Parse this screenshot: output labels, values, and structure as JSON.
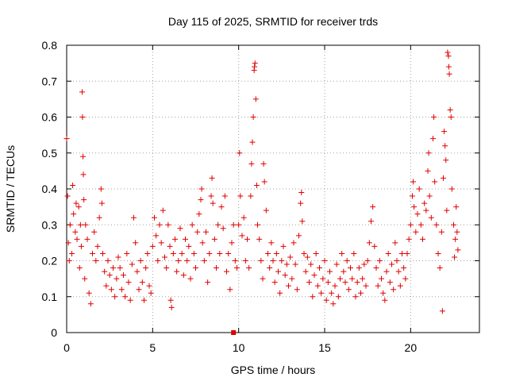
{
  "chart_data": {
    "type": "scatter",
    "title": "Day 115 of 2025, SRMTID for receiver trds",
    "xlabel": "GPS time / hours",
    "ylabel": "SRMTID / TECUs",
    "xlim": [
      0,
      24
    ],
    "ylim": [
      0,
      0.8
    ],
    "xticks": [
      0,
      5,
      10,
      15,
      20
    ],
    "yticks": [
      0,
      0.1,
      0.2,
      0.3,
      0.4,
      0.5,
      0.6,
      0.7,
      0.8
    ],
    "xtick_labels": [
      "0",
      "5",
      "10",
      "15",
      "20"
    ],
    "ytick_labels": [
      "0",
      "0.1",
      "0.2",
      "0.3",
      "0.4",
      "0.5",
      "0.6",
      "0.7",
      "0.8"
    ],
    "grid": true,
    "marker": "+",
    "color": "#e00000",
    "series": [
      {
        "name": "SRMTID",
        "points": [
          [
            0.0,
            0.54
          ],
          [
            0.05,
            0.38
          ],
          [
            0.1,
            0.25
          ],
          [
            0.15,
            0.2
          ],
          [
            0.2,
            0.3
          ],
          [
            0.3,
            0.22
          ],
          [
            0.35,
            0.41
          ],
          [
            0.4,
            0.33
          ],
          [
            0.5,
            0.28
          ],
          [
            0.55,
            0.36
          ],
          [
            0.6,
            0.26
          ],
          [
            0.7,
            0.35
          ],
          [
            0.75,
            0.18
          ],
          [
            0.8,
            0.3
          ],
          [
            0.85,
            0.24
          ],
          [
            0.9,
            0.67
          ],
          [
            0.92,
            0.6
          ],
          [
            0.95,
            0.49
          ],
          [
            0.97,
            0.44
          ],
          [
            1.0,
            0.37
          ],
          [
            1.05,
            0.15
          ],
          [
            1.1,
            0.3
          ],
          [
            1.2,
            0.26
          ],
          [
            1.3,
            0.11
          ],
          [
            1.4,
            0.08
          ],
          [
            1.5,
            0.22
          ],
          [
            1.6,
            0.28
          ],
          [
            1.7,
            0.2
          ],
          [
            1.8,
            0.24
          ],
          [
            1.9,
            0.32
          ],
          [
            2.0,
            0.4
          ],
          [
            2.05,
            0.36
          ],
          [
            2.1,
            0.22
          ],
          [
            2.2,
            0.17
          ],
          [
            2.3,
            0.13
          ],
          [
            2.4,
            0.2
          ],
          [
            2.5,
            0.16
          ],
          [
            2.6,
            0.12
          ],
          [
            2.7,
            0.18
          ],
          [
            2.8,
            0.1
          ],
          [
            2.9,
            0.15
          ],
          [
            3.0,
            0.21
          ],
          [
            3.1,
            0.18
          ],
          [
            3.2,
            0.12
          ],
          [
            3.3,
            0.16
          ],
          [
            3.4,
            0.1
          ],
          [
            3.5,
            0.22
          ],
          [
            3.6,
            0.14
          ],
          [
            3.7,
            0.09
          ],
          [
            3.8,
            0.19
          ],
          [
            3.9,
            0.32
          ],
          [
            4.0,
            0.25
          ],
          [
            4.1,
            0.17
          ],
          [
            4.2,
            0.12
          ],
          [
            4.3,
            0.2
          ],
          [
            4.4,
            0.14
          ],
          [
            4.5,
            0.09
          ],
          [
            4.6,
            0.18
          ],
          [
            4.7,
            0.22
          ],
          [
            4.8,
            0.13
          ],
          [
            4.9,
            0.11
          ],
          [
            5.0,
            0.24
          ],
          [
            5.1,
            0.32
          ],
          [
            5.2,
            0.27
          ],
          [
            5.3,
            0.2
          ],
          [
            5.4,
            0.3
          ],
          [
            5.5,
            0.25
          ],
          [
            5.6,
            0.34
          ],
          [
            5.7,
            0.21
          ],
          [
            5.8,
            0.18
          ],
          [
            5.9,
            0.3
          ],
          [
            6.0,
            0.24
          ],
          [
            6.05,
            0.09
          ],
          [
            6.1,
            0.07
          ],
          [
            6.2,
            0.22
          ],
          [
            6.3,
            0.26
          ],
          [
            6.4,
            0.17
          ],
          [
            6.5,
            0.2
          ],
          [
            6.6,
            0.29
          ],
          [
            6.7,
            0.22
          ],
          [
            6.8,
            0.16
          ],
          [
            6.9,
            0.26
          ],
          [
            7.0,
            0.2
          ],
          [
            7.1,
            0.24
          ],
          [
            7.2,
            0.15
          ],
          [
            7.3,
            0.3
          ],
          [
            7.4,
            0.22
          ],
          [
            7.5,
            0.18
          ],
          [
            7.6,
            0.28
          ],
          [
            7.7,
            0.33
          ],
          [
            7.8,
            0.37
          ],
          [
            7.85,
            0.4
          ],
          [
            7.9,
            0.25
          ],
          [
            8.0,
            0.2
          ],
          [
            8.1,
            0.28
          ],
          [
            8.2,
            0.14
          ],
          [
            8.3,
            0.22
          ],
          [
            8.4,
            0.38
          ],
          [
            8.45,
            0.43
          ],
          [
            8.5,
            0.36
          ],
          [
            8.6,
            0.26
          ],
          [
            8.7,
            0.18
          ],
          [
            8.8,
            0.3
          ],
          [
            8.9,
            0.22
          ],
          [
            9.0,
            0.35
          ],
          [
            9.1,
            0.29
          ],
          [
            9.2,
            0.38
          ],
          [
            9.3,
            0.17
          ],
          [
            9.4,
            0.22
          ],
          [
            9.5,
            0.12
          ],
          [
            9.6,
            0.25
          ],
          [
            9.7,
            0.3
          ],
          [
            9.8,
            0.2
          ],
          [
            9.9,
            0.18
          ],
          [
            10.0,
            0.3
          ],
          [
            10.05,
            0.5
          ],
          [
            10.1,
            0.38
          ],
          [
            10.2,
            0.27
          ],
          [
            10.3,
            0.32
          ],
          [
            10.4,
            0.2
          ],
          [
            10.5,
            0.26
          ],
          [
            10.6,
            0.18
          ],
          [
            10.7,
            0.38
          ],
          [
            10.75,
            0.47
          ],
          [
            10.8,
            0.53
          ],
          [
            10.85,
            0.6
          ],
          [
            10.9,
            0.73
          ],
          [
            10.92,
            0.74
          ],
          [
            10.95,
            0.75
          ],
          [
            11.0,
            0.65
          ],
          [
            11.05,
            0.41
          ],
          [
            11.1,
            0.3
          ],
          [
            11.2,
            0.26
          ],
          [
            11.3,
            0.2
          ],
          [
            11.4,
            0.15
          ],
          [
            11.45,
            0.47
          ],
          [
            11.5,
            0.42
          ],
          [
            11.6,
            0.34
          ],
          [
            11.7,
            0.22
          ],
          [
            11.8,
            0.18
          ],
          [
            11.9,
            0.25
          ],
          [
            12.0,
            0.2
          ],
          [
            12.1,
            0.14
          ],
          [
            12.2,
            0.22
          ],
          [
            12.3,
            0.17
          ],
          [
            12.4,
            0.11
          ],
          [
            12.5,
            0.2
          ],
          [
            12.6,
            0.24
          ],
          [
            12.7,
            0.16
          ],
          [
            12.8,
            0.19
          ],
          [
            12.9,
            0.13
          ],
          [
            13.0,
            0.21
          ],
          [
            13.1,
            0.15
          ],
          [
            13.2,
            0.25
          ],
          [
            13.3,
            0.19
          ],
          [
            13.4,
            0.12
          ],
          [
            13.5,
            0.27
          ],
          [
            13.6,
            0.36
          ],
          [
            13.65,
            0.39
          ],
          [
            13.7,
            0.31
          ],
          [
            13.8,
            0.22
          ],
          [
            13.9,
            0.17
          ],
          [
            14.0,
            0.21
          ],
          [
            14.1,
            0.14
          ],
          [
            14.2,
            0.19
          ],
          [
            14.3,
            0.1
          ],
          [
            14.4,
            0.16
          ],
          [
            14.5,
            0.22
          ],
          [
            14.6,
            0.13
          ],
          [
            14.7,
            0.18
          ],
          [
            14.8,
            0.11
          ],
          [
            14.9,
            0.15
          ],
          [
            15.0,
            0.2
          ],
          [
            15.1,
            0.09
          ],
          [
            15.2,
            0.14
          ],
          [
            15.3,
            0.17
          ],
          [
            15.4,
            0.11
          ],
          [
            15.5,
            0.08
          ],
          [
            15.6,
            0.13
          ],
          [
            15.7,
            0.19
          ],
          [
            15.8,
            0.1
          ],
          [
            15.9,
            0.15
          ],
          [
            16.0,
            0.22
          ],
          [
            16.1,
            0.17
          ],
          [
            16.2,
            0.14
          ],
          [
            16.3,
            0.2
          ],
          [
            16.4,
            0.12
          ],
          [
            16.5,
            0.18
          ],
          [
            16.6,
            0.15
          ],
          [
            16.7,
            0.22
          ],
          [
            16.8,
            0.1
          ],
          [
            16.9,
            0.14
          ],
          [
            17.0,
            0.18
          ],
          [
            17.1,
            0.11
          ],
          [
            17.2,
            0.15
          ],
          [
            17.3,
            0.19
          ],
          [
            17.4,
            0.13
          ],
          [
            17.5,
            0.2
          ],
          [
            17.6,
            0.25
          ],
          [
            17.7,
            0.31
          ],
          [
            17.8,
            0.35
          ],
          [
            17.9,
            0.24
          ],
          [
            18.0,
            0.18
          ],
          [
            18.1,
            0.13
          ],
          [
            18.2,
            0.2
          ],
          [
            18.3,
            0.15
          ],
          [
            18.4,
            0.11
          ],
          [
            18.5,
            0.09
          ],
          [
            18.6,
            0.17
          ],
          [
            18.7,
            0.22
          ],
          [
            18.8,
            0.14
          ],
          [
            18.9,
            0.19
          ],
          [
            19.0,
            0.12
          ],
          [
            19.1,
            0.25
          ],
          [
            19.2,
            0.2
          ],
          [
            19.3,
            0.17
          ],
          [
            19.4,
            0.13
          ],
          [
            19.5,
            0.22
          ],
          [
            19.6,
            0.18
          ],
          [
            19.7,
            0.15
          ],
          [
            19.8,
            0.22
          ],
          [
            19.9,
            0.26
          ],
          [
            20.0,
            0.3
          ],
          [
            20.1,
            0.38
          ],
          [
            20.15,
            0.42
          ],
          [
            20.2,
            0.35
          ],
          [
            20.3,
            0.28
          ],
          [
            20.4,
            0.33
          ],
          [
            20.5,
            0.4
          ],
          [
            20.6,
            0.3
          ],
          [
            20.7,
            0.26
          ],
          [
            20.8,
            0.36
          ],
          [
            20.9,
            0.34
          ],
          [
            21.0,
            0.45
          ],
          [
            21.05,
            0.5
          ],
          [
            21.1,
            0.38
          ],
          [
            21.2,
            0.32
          ],
          [
            21.3,
            0.54
          ],
          [
            21.35,
            0.6
          ],
          [
            21.4,
            0.42
          ],
          [
            21.5,
            0.3
          ],
          [
            21.6,
            0.22
          ],
          [
            21.7,
            0.18
          ],
          [
            21.8,
            0.28
          ],
          [
            21.85,
            0.06
          ],
          [
            21.9,
            0.43
          ],
          [
            21.95,
            0.56
          ],
          [
            22.0,
            0.52
          ],
          [
            22.05,
            0.48
          ],
          [
            22.1,
            0.34
          ],
          [
            22.15,
            0.78
          ],
          [
            22.2,
            0.77
          ],
          [
            22.22,
            0.74
          ],
          [
            22.25,
            0.72
          ],
          [
            22.3,
            0.62
          ],
          [
            22.35,
            0.6
          ],
          [
            22.4,
            0.4
          ],
          [
            22.5,
            0.3
          ],
          [
            22.55,
            0.21
          ],
          [
            22.6,
            0.26
          ],
          [
            22.65,
            0.35
          ],
          [
            22.7,
            0.28
          ],
          [
            22.75,
            0.23
          ]
        ]
      }
    ],
    "outlier_marker": {
      "x": 9.7,
      "y": 0
    }
  }
}
